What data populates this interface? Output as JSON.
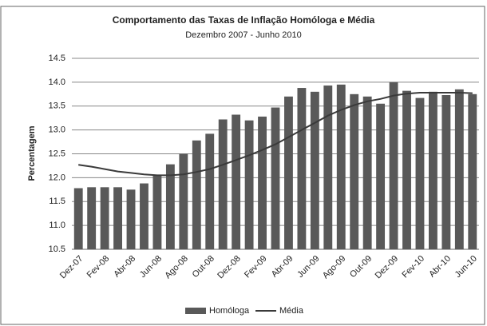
{
  "chart_data": {
    "type": "bar_line",
    "title": "Comportamento das Taxas de Inflação Homóloga e Média",
    "subtitle": "Dezembro 2007 - Junho 2010",
    "y_label": "Percentagem",
    "categories": [
      "Dez-07",
      null,
      "Fev-08",
      null,
      "Abr-08",
      null,
      "Jun-08",
      null,
      "Ago-08",
      null,
      "Out-08",
      null,
      "Dez-08",
      null,
      "Fev-09",
      null,
      "Abr-09",
      null,
      "Jun-09",
      null,
      "Ago-09",
      null,
      "Out-09",
      null,
      "Dez-09",
      null,
      "Fev-10",
      null,
      "Abr-10",
      null,
      "Jun-10"
    ],
    "series": [
      {
        "name": "Homóloga",
        "color": "#595959",
        "kind": "bar",
        "values": [
          11.78,
          11.8,
          11.8,
          11.8,
          11.75,
          11.88,
          12.05,
          12.28,
          12.5,
          12.78,
          12.92,
          13.22,
          13.32,
          13.2,
          13.28,
          13.47,
          13.7,
          13.88,
          13.8,
          13.93,
          13.95,
          13.75,
          13.7,
          13.55,
          14.0,
          13.82,
          13.67,
          13.8,
          13.73,
          13.85,
          13.75
        ]
      },
      {
        "name": "Média",
        "color": "#3a3a3a",
        "kind": "line",
        "values": [
          12.27,
          12.23,
          12.18,
          12.13,
          12.1,
          12.07,
          12.05,
          12.05,
          12.07,
          12.12,
          12.18,
          12.27,
          12.37,
          12.47,
          12.58,
          12.7,
          12.85,
          13.0,
          13.15,
          13.3,
          13.42,
          13.52,
          13.6,
          13.65,
          13.72,
          13.76,
          13.78,
          13.78,
          13.78,
          13.78,
          13.77
        ]
      }
    ],
    "ylim": [
      10.5,
      14.5
    ],
    "yticks": [
      10.5,
      {
        "value": 11,
        "label": "11.0"
      },
      11.5,
      {
        "value": 12,
        "label": "12.0"
      },
      12.5,
      {
        "value": 13,
        "label": "13.0"
      },
      13.5,
      {
        "value": 14,
        "label": "14.0"
      },
      14.5
    ],
    "grid": true,
    "legend": "bottom"
  }
}
